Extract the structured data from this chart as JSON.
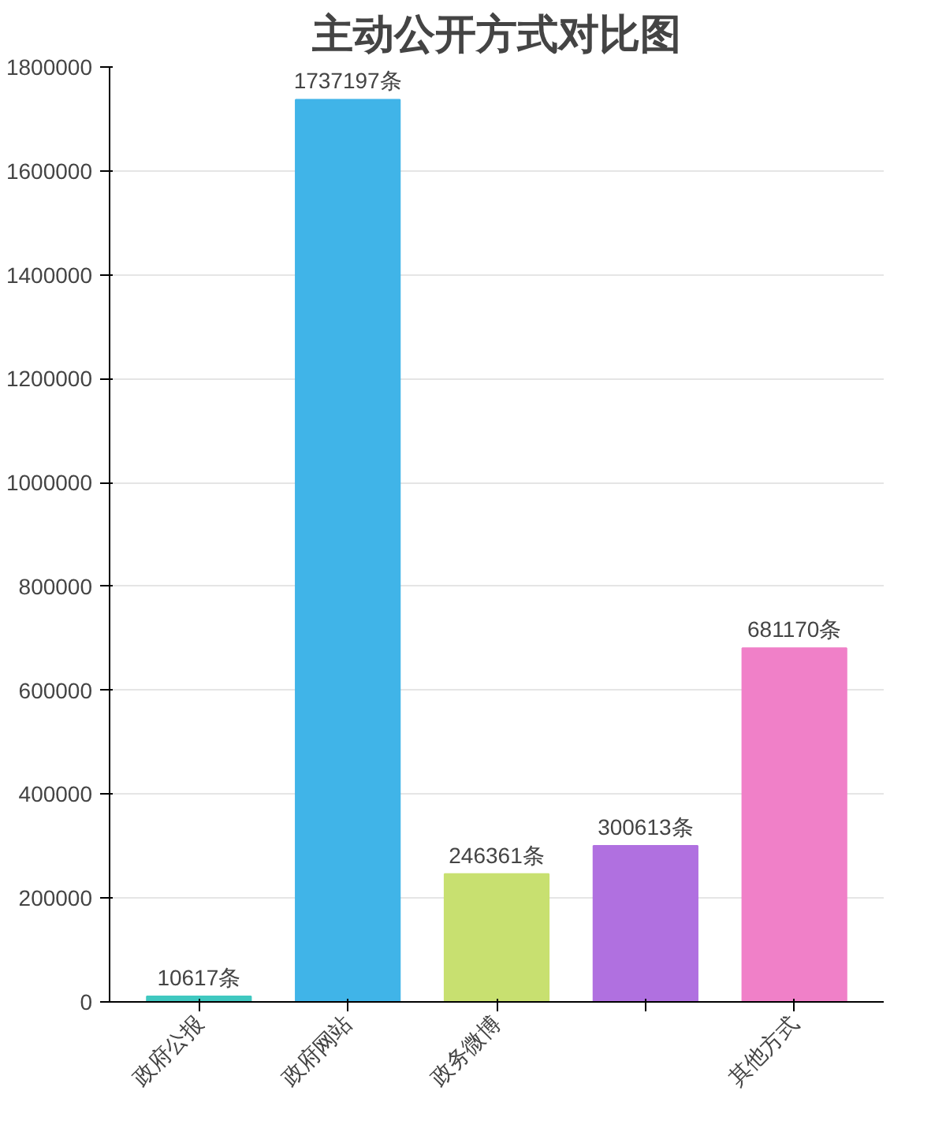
{
  "chart_data": {
    "type": "bar",
    "title": "主动公开方式对比图",
    "categories": [
      "政府公报",
      "政府网站",
      "政务微博",
      null,
      "其他方式"
    ],
    "values": [
      10617,
      1737197,
      246361,
      300613,
      681170
    ],
    "colors": [
      "#40c8c0",
      "#40b4e8",
      "#c8e070",
      "#b070e0",
      "#f080c8"
    ],
    "value_labels": [
      "10617条",
      "1737197条",
      "246361条",
      "300613条",
      "681170条"
    ],
    "ylim": [
      0,
      1800000
    ],
    "yticks": [
      0,
      200000,
      400000,
      600000,
      800000,
      1000000,
      1200000,
      1400000,
      1600000,
      1800000
    ],
    "grid": "y"
  }
}
